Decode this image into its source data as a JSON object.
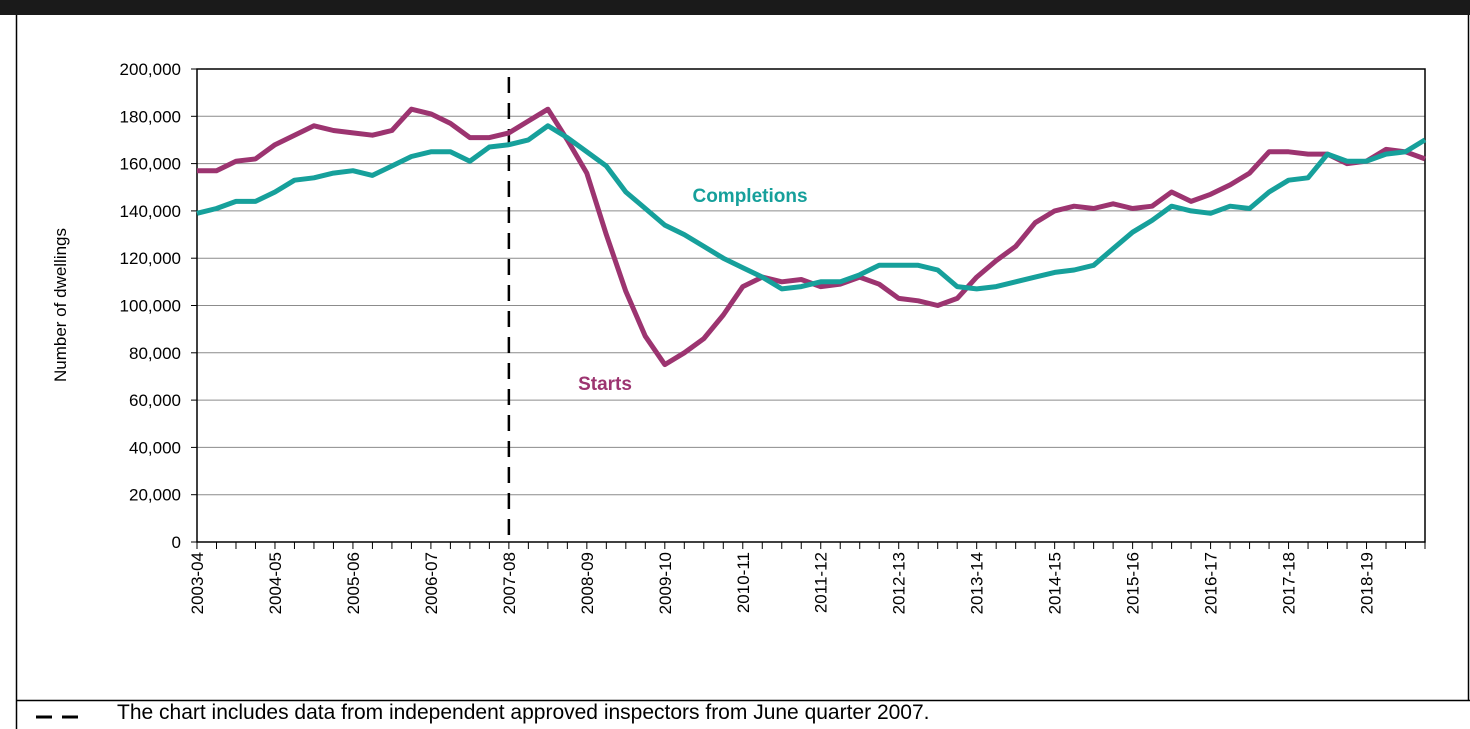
{
  "chart_data": {
    "type": "line",
    "y_label": "Number  of dwellings",
    "categories": [
      "2003-04",
      null,
      null,
      null,
      "2004-05",
      null,
      null,
      null,
      "2005-06",
      null,
      null,
      null,
      "2006-07",
      null,
      null,
      null,
      "2007-08",
      null,
      null,
      null,
      "2008-09",
      null,
      null,
      null,
      "2009-10",
      null,
      null,
      null,
      "2010-11",
      null,
      null,
      null,
      "2011-12",
      null,
      null,
      null,
      "2012-13",
      null,
      null,
      null,
      "2013-14",
      null,
      null,
      null,
      "2014-15",
      null,
      null,
      null,
      "2015-16",
      null,
      null,
      null,
      "2016-17",
      null,
      null,
      null,
      "2017-18",
      null,
      null,
      null,
      "2018-19",
      null,
      null,
      null
    ],
    "series": [
      {
        "name": "Starts",
        "color": "#9c3470",
        "values": [
          157000,
          157000,
          161000,
          162000,
          168000,
          172000,
          176000,
          174000,
          173000,
          172000,
          174000,
          183000,
          181000,
          177000,
          171000,
          171000,
          173000,
          178000,
          183000,
          170000,
          156000,
          130000,
          106000,
          87000,
          75000,
          80000,
          86000,
          96000,
          108000,
          112000,
          110000,
          111000,
          108000,
          109000,
          112000,
          109000,
          103000,
          102000,
          100000,
          103000,
          112000,
          119000,
          125000,
          135000,
          140000,
          142000,
          141000,
          143000,
          141000,
          142000,
          148000,
          144000,
          147000,
          151000,
          156000,
          165000,
          165000,
          164000,
          164000,
          160000,
          161000,
          166000,
          165000,
          162000
        ]
      },
      {
        "name": "Completions",
        "color": "#16a09b",
        "values": [
          139000,
          141000,
          144000,
          144000,
          148000,
          153000,
          154000,
          156000,
          157000,
          155000,
          159000,
          163000,
          165000,
          165000,
          161000,
          167000,
          168000,
          170000,
          176000,
          171000,
          165000,
          159000,
          148000,
          141000,
          134000,
          130000,
          125000,
          120000,
          116000,
          112000,
          107000,
          108000,
          110000,
          110000,
          113000,
          117000,
          117000,
          117000,
          115000,
          108000,
          107000,
          108000,
          110000,
          112000,
          114000,
          115000,
          117000,
          124000,
          131000,
          136000,
          142000,
          140000,
          139000,
          142000,
          141000,
          148000,
          153000,
          154000,
          164000,
          161000,
          161000,
          164000,
          165000,
          170000
        ]
      }
    ],
    "ylim": [
      0,
      200000
    ],
    "yticks": [
      0,
      {
        "value": 20000,
        "label": "20,000"
      },
      {
        "value": 40000,
        "label": "40,000"
      },
      {
        "value": 60000,
        "label": "60,000"
      },
      {
        "value": 80000,
        "label": "80,000"
      },
      {
        "value": 100000,
        "label": "100,000"
      },
      {
        "value": 120000,
        "label": "120,000"
      },
      {
        "value": 140000,
        "label": "140,000"
      },
      {
        "value": 160000,
        "label": "160,000"
      },
      {
        "value": 180000,
        "label": "180,000"
      },
      {
        "value": 200000,
        "label": "200,000"
      }
    ],
    "grid": true,
    "vertical_line_at": "2007-08",
    "footnote": "The chart includes data from independent approved inspectors from June quarter 2007."
  }
}
